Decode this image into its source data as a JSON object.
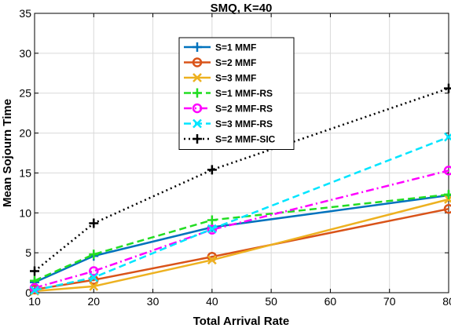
{
  "chart_data": {
    "type": "line",
    "title": "SMQ, K=40",
    "xlabel": "Total Arrival Rate",
    "ylabel": "Mean Sojourn Time",
    "xlim": [
      10,
      80
    ],
    "ylim": [
      0,
      35
    ],
    "xticks": [
      10,
      20,
      30,
      40,
      50,
      60,
      70,
      80
    ],
    "yticks": [
      0,
      5,
      10,
      15,
      20,
      25,
      30,
      35
    ],
    "grid": true,
    "legend_position": "upper-center",
    "x": [
      10,
      20,
      40,
      80
    ],
    "series": [
      {
        "name": "S=1 MMF",
        "values": [
          1.3,
          4.6,
          8.2,
          12.2
        ],
        "color": "#0072BD",
        "dash": "solid",
        "marker": "plus"
      },
      {
        "name": "S=2 MMF",
        "values": [
          0.4,
          1.6,
          4.5,
          10.5
        ],
        "color": "#D95319",
        "dash": "solid",
        "marker": "circle"
      },
      {
        "name": "S=3 MMF",
        "values": [
          0.2,
          0.8,
          4.1,
          11.7
        ],
        "color": "#EDB120",
        "dash": "solid",
        "marker": "x"
      },
      {
        "name": "S=1 MMF-RS",
        "values": [
          1.5,
          4.8,
          9.1,
          12.3
        ],
        "color": "#22DD22",
        "dash": "dashed",
        "marker": "plus"
      },
      {
        "name": "S=2 MMF-RS",
        "values": [
          0.6,
          2.7,
          7.9,
          15.3
        ],
        "color": "#FF00FF",
        "dash": "dashdot",
        "marker": "circle"
      },
      {
        "name": "S=3 MMF-RS",
        "values": [
          0.3,
          1.9,
          8.0,
          19.5
        ],
        "color": "#00E5FF",
        "dash": "dashed",
        "marker": "x"
      },
      {
        "name": "S=2 MMF-SIC",
        "values": [
          2.7,
          8.7,
          15.4,
          25.6
        ],
        "color": "#000000",
        "dash": "dotted",
        "marker": "plus"
      }
    ]
  }
}
